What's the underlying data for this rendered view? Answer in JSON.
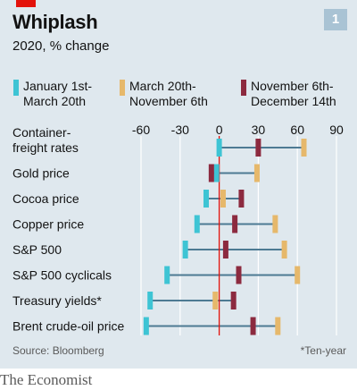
{
  "header": {
    "title": "Whiplash",
    "subtitle": "2020, % change",
    "badge": "1"
  },
  "legend": [
    {
      "label": "January 1st-\nMarch 20th",
      "color": "#3ec4d4"
    },
    {
      "label": "March 20th-\nNovember 6th",
      "color": "#e6b86b"
    },
    {
      "label": "November 6th-\nDecember 14th",
      "color": "#8c2a3f"
    }
  ],
  "footer": {
    "source": "Source: Bloomberg",
    "note": "*Ten-year",
    "brand": "The Economist"
  },
  "colors": {
    "line": "#4d7a93",
    "zero": "#e3120b",
    "grid": "#ffffff"
  },
  "chart_data": {
    "type": "dot-range",
    "categories": [
      "Container-\nfreight rates",
      "Gold price",
      "Cocoa price",
      "Copper price",
      "S&P 500",
      "S&P 500 cyclicals",
      "Treasury yields*",
      "Brent crude-oil price"
    ],
    "series": [
      {
        "name": "January 1st-March 20th",
        "values": [
          0,
          -2,
          -10,
          -17,
          -26,
          -40,
          -53,
          -56
        ]
      },
      {
        "name": "March 20th-November 6th",
        "values": [
          65,
          29,
          3,
          43,
          50,
          60,
          -3,
          45
        ]
      },
      {
        "name": "November 6th-December 14th",
        "values": [
          30,
          -6,
          17,
          12,
          5,
          15,
          11,
          26
        ]
      }
    ],
    "xticks": [
      "-60",
      "-30",
      "0",
      "30",
      "60",
      "90"
    ],
    "xlim": [
      -65,
      95
    ]
  }
}
